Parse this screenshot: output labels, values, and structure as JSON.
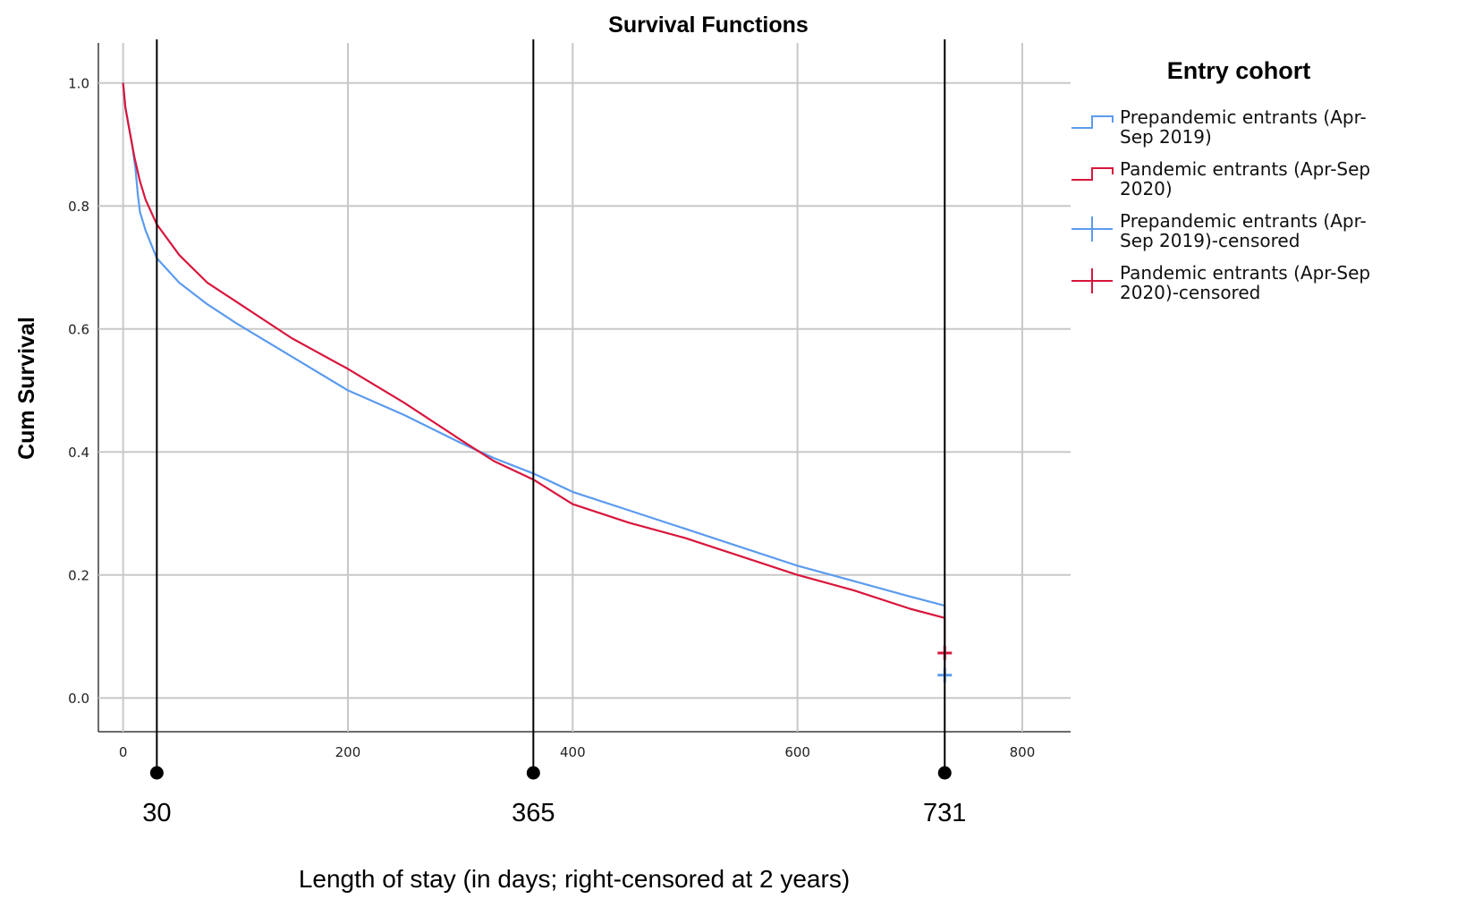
{
  "chart_data": {
    "type": "line",
    "title": "Survival Functions",
    "xlabel": "Length of stay (in days; right-censored at 2 years)",
    "ylabel": "Cum Survival",
    "xlim": [
      -22,
      843
    ],
    "ylim": [
      -0.055,
      1.065
    ],
    "x_ticks": [
      "0",
      "200",
      "400",
      "600",
      "800"
    ],
    "x_tick_values": [
      0,
      200,
      400,
      600,
      800
    ],
    "y_ticks": [
      "0.0",
      "0.2",
      "0.4",
      "0.6",
      "0.8",
      "1.0"
    ],
    "y_tick_values": [
      0,
      0.2,
      0.4,
      0.6,
      0.8,
      1.0
    ],
    "grid": true,
    "legend_placement": "right",
    "legend": {
      "title": "Entry cohort",
      "entries": [
        {
          "label_lines": [
            "Prepandemic entrants (Apr-",
            "Sep 2019)"
          ],
          "symbol": "step",
          "color": "#5b9bef"
        },
        {
          "label_lines": [
            "Pandemic entrants (Apr-Sep",
            "2020)"
          ],
          "symbol": "step",
          "color": "#d8163c"
        },
        {
          "label_lines": [
            "Prepandemic entrants (Apr-",
            "Sep 2019)-censored"
          ],
          "symbol": "plus",
          "color": "#5b9bef"
        },
        {
          "label_lines": [
            "Pandemic entrants (Apr-Sep",
            "2020)-censored"
          ],
          "symbol": "plus",
          "color": "#d8163c"
        }
      ]
    },
    "series": [
      {
        "name": "Prepandemic entrants (Apr-Sep 2019)",
        "color": "#5b9bef",
        "x": [
          0,
          2,
          5,
          8,
          11,
          13,
          15,
          20,
          30,
          50,
          75,
          100,
          150,
          200,
          250,
          300,
          330,
          365,
          400,
          450,
          500,
          550,
          600,
          650,
          700,
          731
        ],
        "y": [
          1.0,
          0.96,
          0.93,
          0.9,
          0.86,
          0.82,
          0.79,
          0.76,
          0.715,
          0.675,
          0.64,
          0.61,
          0.555,
          0.5,
          0.46,
          0.415,
          0.39,
          0.365,
          0.335,
          0.305,
          0.275,
          0.245,
          0.215,
          0.19,
          0.165,
          0.15
        ]
      },
      {
        "name": "Pandemic entrants (Apr-Sep 2020)",
        "color": "#d8163c",
        "x": [
          0,
          2,
          5,
          10,
          15,
          20,
          30,
          50,
          75,
          100,
          150,
          200,
          250,
          300,
          330,
          365,
          400,
          450,
          500,
          550,
          600,
          650,
          700,
          731
        ],
        "y": [
          1.0,
          0.96,
          0.93,
          0.88,
          0.84,
          0.81,
          0.77,
          0.72,
          0.675,
          0.645,
          0.585,
          0.535,
          0.48,
          0.42,
          0.385,
          0.355,
          0.315,
          0.285,
          0.26,
          0.23,
          0.2,
          0.175,
          0.145,
          0.13
        ]
      }
    ],
    "censored_markers": [
      {
        "series": "Prepandemic entrants (Apr-Sep 2019)-censored",
        "x": 731,
        "y": 0.037,
        "color": "#5b9bef"
      },
      {
        "series": "Pandemic entrants (Apr-Sep 2020)-censored",
        "x": 731,
        "y": 0.073,
        "color": "#d8163c"
      }
    ],
    "drop_lines": [
      {
        "series": "Prepandemic entrants (Apr-Sep 2019)",
        "x": 731,
        "from": 0.15,
        "to": 0.037
      },
      {
        "series": "Pandemic entrants (Apr-Sep 2020)",
        "x": 731,
        "from": 0.13,
        "to": 0.073
      }
    ],
    "annotations": {
      "vertical_lines": [
        {
          "x": 30,
          "label": "30"
        },
        {
          "x": 365,
          "label": "365"
        },
        {
          "x": 731,
          "label": "731"
        }
      ]
    }
  }
}
